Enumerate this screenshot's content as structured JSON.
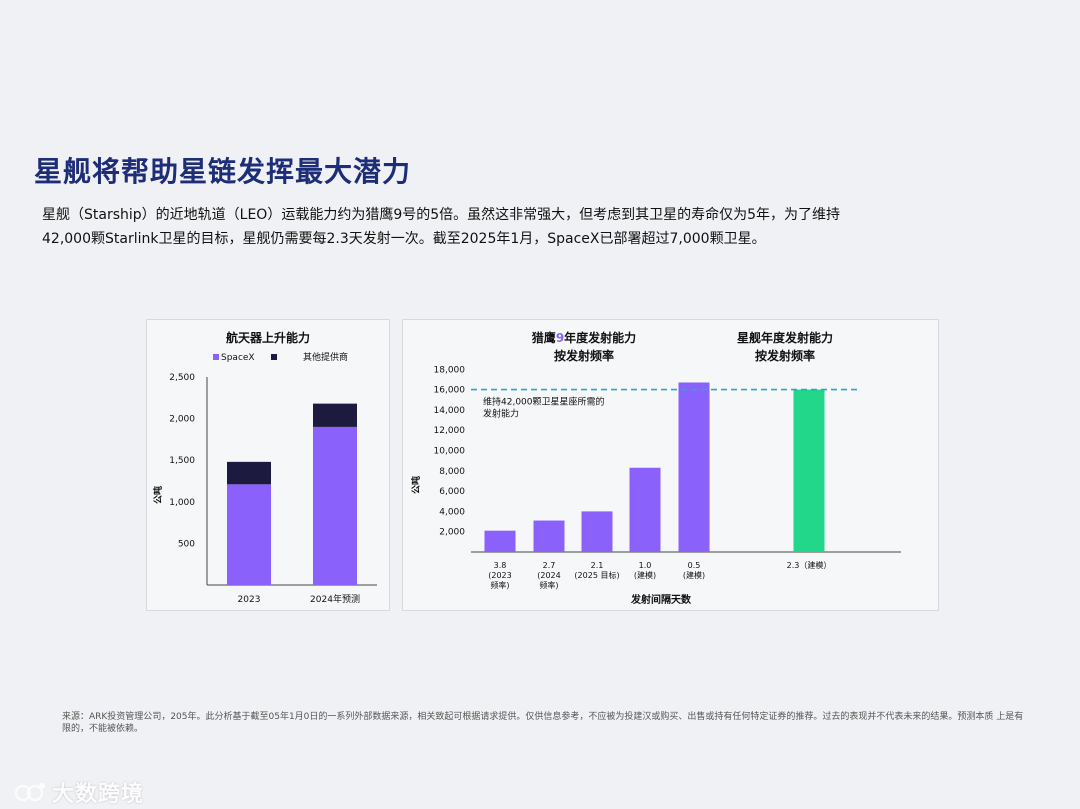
{
  "slide": {
    "title": "星舰将帮助星链发挥最大潜力",
    "subtitle_line1": "星舰（Starship）的近地轨道（LEO）运载能力约为猎鹰9号的5倍。虽然这非常强大，但考虑到其卫星的寿命仅为5年，为了维持",
    "subtitle_line2": "42,000颗Starlink卫星的目标，星舰仍需要每2.3天发射一次。截至2025年1月，SpaceX已部署超过7,000颗卫星。",
    "footnote": "来源：ARK投资管理公司，205年。此分析基于截至05年1月0日的一系列外部数据来源，相关致起可根据请求提供。仅供信息参考，不应被为投建汉或购买、出售或持有任何特定证券的推荐。过去的表现并不代表未来的结果。预测本质 上是有限的，不能被依赖。",
    "watermark": "大数跨境"
  },
  "colors": {
    "title": "#1d2d78",
    "spacex": "#8a62fb",
    "others": "#1c1a3f",
    "starship": "#22d68a",
    "dashed": "#2ba6c4",
    "axis": "#444444"
  },
  "chart_data": [
    {
      "type": "bar",
      "stacked": true,
      "title": "航天器上升能力",
      "ylabel": "公吨",
      "categories": [
        "2023",
        "2024年预测"
      ],
      "series": [
        {
          "name": "SpaceX",
          "values": [
            1210,
            1900
          ]
        },
        {
          "name": "其他提供商",
          "values": [
            270,
            280
          ]
        }
      ],
      "ylim": [
        0,
        2500
      ],
      "yticks": [
        500,
        1000,
        1500,
        2000,
        2500
      ],
      "ytick_labels": [
        "500",
        "1,000",
        "1,500",
        "2,000",
        "2,500"
      ],
      "legend": "top"
    },
    {
      "type": "bar",
      "title_left_prefix": "猎鹰",
      "title_left_highlight": "9",
      "title_left_suffix": "年度发射能力",
      "title_left_line2": "按发射频率",
      "title_right_line1": "星舰年度发射能力",
      "title_right_line2": "按发射频率",
      "xlabel": "发射间隔天数",
      "ylabel": "公吨",
      "ylim": [
        0,
        18000
      ],
      "yticks": [
        2000,
        4000,
        6000,
        8000,
        10000,
        12000,
        14000,
        16000,
        18000
      ],
      "ytick_labels": [
        "2,000",
        "4,000",
        "6,000",
        "8,000",
        "10,000",
        "12,000",
        "14,000",
        "16,000",
        "18,000"
      ],
      "categories": [
        {
          "lines": [
            "3.8",
            "(2023",
            "频率)"
          ]
        },
        {
          "lines": [
            "2.7",
            "(2024",
            "频率)"
          ]
        },
        {
          "lines": [
            "2.1",
            "(2025 目标)"
          ]
        },
        {
          "lines": [
            "1.0",
            "(建模)"
          ]
        },
        {
          "lines": [
            "0.5",
            "(建模)"
          ]
        },
        {
          "lines": [
            "2.3（建模）"
          ]
        }
      ],
      "values": [
        2100,
        3100,
        4000,
        8300,
        16700,
        16000
      ],
      "bar_groups": [
        "falcon9",
        "falcon9",
        "falcon9",
        "falcon9",
        "falcon9",
        "starship"
      ],
      "reference_line": {
        "value": 16000,
        "label_line1": "维持42,000颗卫星星座所需的",
        "label_line2": "发射能力"
      }
    }
  ]
}
